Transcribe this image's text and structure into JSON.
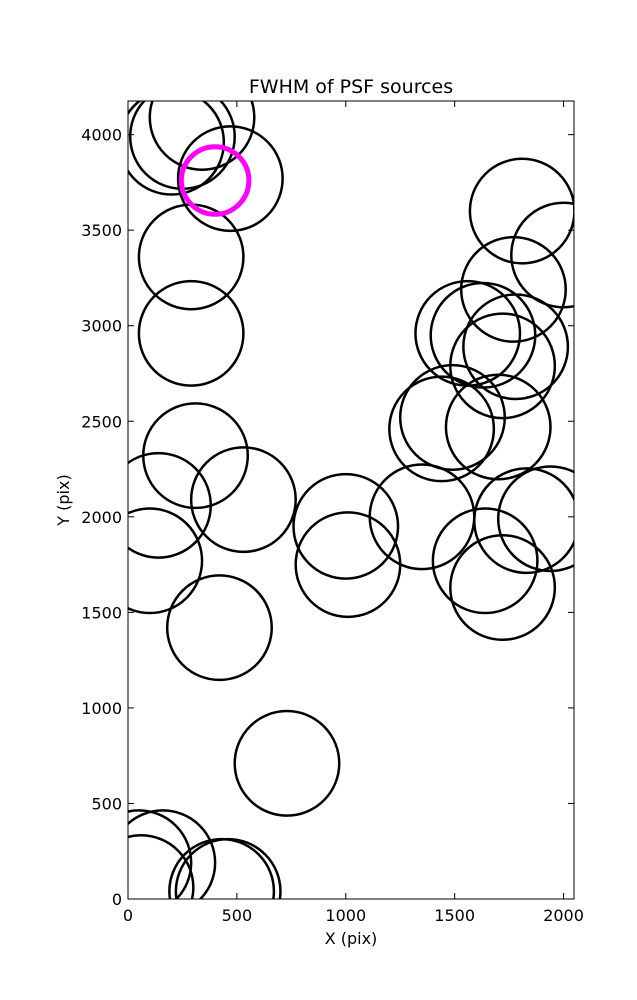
{
  "chart_data": {
    "type": "scatter",
    "title": "FWHM of PSF sources",
    "xlabel": "X (pix)",
    "ylabel": "Y (pix)",
    "xlim": [
      0,
      2048
    ],
    "ylim": [
      0,
      4176
    ],
    "xticks": [
      0,
      500,
      1000,
      1500,
      2000
    ],
    "yticks": [
      0,
      500,
      1000,
      1500,
      2000,
      2500,
      3000,
      3500,
      4000
    ],
    "grid": false,
    "marker_radius": 240,
    "highlight_radius": 155,
    "colors": {
      "source": "#000000",
      "highlight": "#ff00ff"
    },
    "sources": [
      {
        "x": 200,
        "y": 3960
      },
      {
        "x": 250,
        "y": 3990
      },
      {
        "x": 340,
        "y": 4090
      },
      {
        "x": 470,
        "y": 3770
      },
      {
        "x": 290,
        "y": 3360
      },
      {
        "x": 290,
        "y": 2960
      },
      {
        "x": 310,
        "y": 2320
      },
      {
        "x": 140,
        "y": 2060
      },
      {
        "x": 530,
        "y": 2090
      },
      {
        "x": 100,
        "y": 1770
      },
      {
        "x": 420,
        "y": 1420
      },
      {
        "x": 1000,
        "y": 1950
      },
      {
        "x": 1010,
        "y": 1750
      },
      {
        "x": 1350,
        "y": 2000
      },
      {
        "x": 1440,
        "y": 2460
      },
      {
        "x": 1490,
        "y": 2520
      },
      {
        "x": 1700,
        "y": 2470
      },
      {
        "x": 1560,
        "y": 2960
      },
      {
        "x": 1630,
        "y": 2950
      },
      {
        "x": 1720,
        "y": 2790
      },
      {
        "x": 1780,
        "y": 2890
      },
      {
        "x": 1770,
        "y": 3190
      },
      {
        "x": 1810,
        "y": 3600
      },
      {
        "x": 2000,
        "y": 3370
      },
      {
        "x": 1640,
        "y": 1770
      },
      {
        "x": 1830,
        "y": 1980
      },
      {
        "x": 1940,
        "y": 1990
      },
      {
        "x": 1720,
        "y": 1630
      },
      {
        "x": 730,
        "y": 710
      },
      {
        "x": 160,
        "y": 190
      },
      {
        "x": 50,
        "y": 190
      },
      {
        "x": 60,
        "y": 60
      },
      {
        "x": 430,
        "y": 40
      },
      {
        "x": 460,
        "y": 40
      }
    ],
    "highlight": {
      "x": 400,
      "y": 3760
    }
  }
}
